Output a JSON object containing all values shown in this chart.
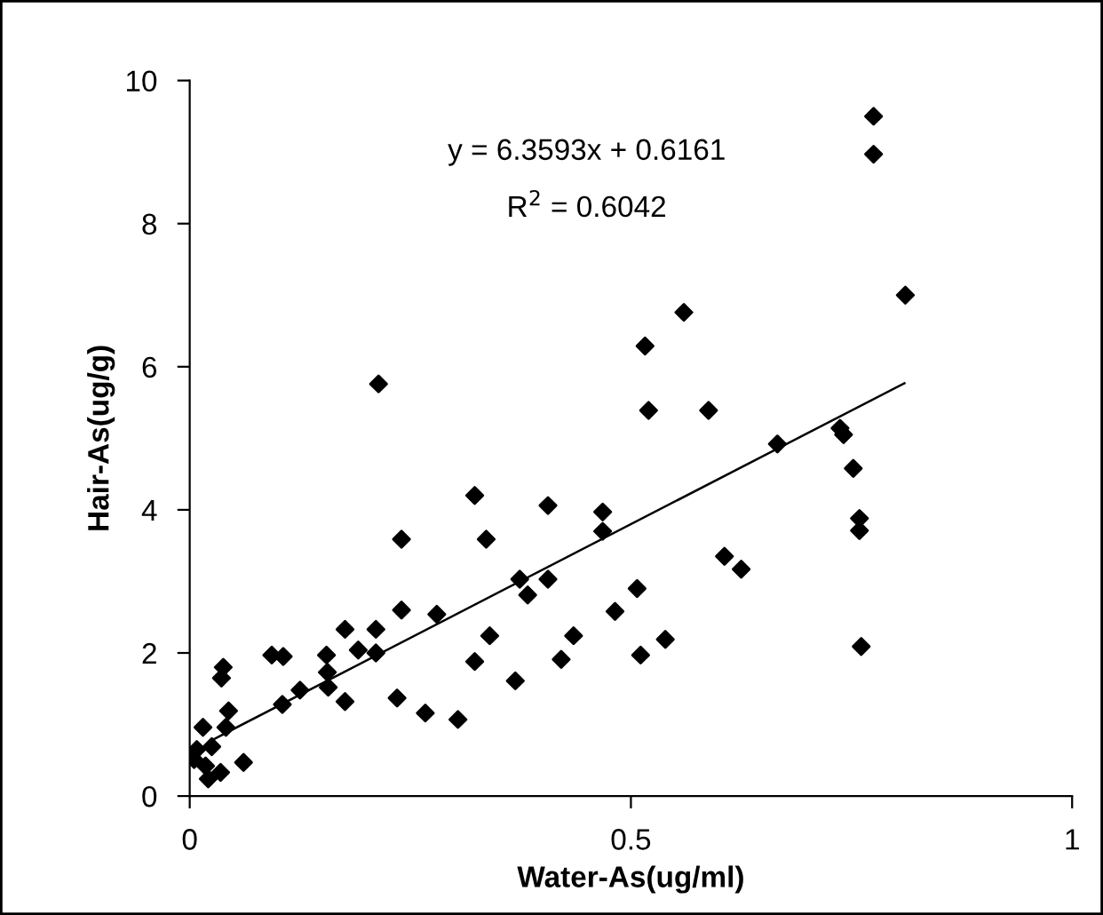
{
  "chart_data": {
    "type": "scatter",
    "xlabel": "Water-As(ug/ml)",
    "ylabel": "Hair-As(ug/g)",
    "annotations": [
      "y = 6.3593x + 0.6161",
      "R$^{2}$ = 0.6042"
    ],
    "xlim": [
      0,
      1
    ],
    "ylim": [
      0,
      10
    ],
    "xticks": [
      0,
      0.5,
      1
    ],
    "yticks": [
      0,
      2,
      4,
      6,
      8,
      10
    ],
    "grid": false,
    "legend": false,
    "series": [
      {
        "marker": "diamond",
        "color": "#000000",
        "x": [
          0.214,
          0.038,
          0.036,
          0.093,
          0.106,
          0.105,
          0.125,
          0.155,
          0.156,
          0.157,
          0.176,
          0.176,
          0.191,
          0.211,
          0.211,
          0.24,
          0.24,
          0.235,
          0.267,
          0.304,
          0.28,
          0.323,
          0.336,
          0.323,
          0.34,
          0.369,
          0.374,
          0.383,
          0.406,
          0.406,
          0.421,
          0.435,
          0.468,
          0.468,
          0.482,
          0.015,
          0.025,
          0.018,
          0.035,
          0.044,
          0.061,
          0.008,
          0.021,
          0.041,
          0.005,
          0.775,
          0.775,
          0.811,
          0.56,
          0.516,
          0.52,
          0.588,
          0.666,
          0.737,
          0.741,
          0.752,
          0.759,
          0.759,
          0.761,
          0.606,
          0.625,
          0.507,
          0.511,
          0.539
        ],
        "values": [
          5.76,
          1.8,
          1.65,
          1.97,
          1.95,
          1.28,
          1.48,
          1.97,
          1.73,
          1.52,
          2.33,
          1.32,
          2.04,
          2.33,
          2.0,
          3.59,
          2.6,
          1.37,
          1.16,
          1.07,
          2.54,
          4.2,
          3.59,
          1.88,
          2.24,
          1.61,
          3.03,
          2.81,
          4.06,
          3.03,
          1.91,
          2.24,
          3.97,
          3.7,
          2.58,
          0.96,
          0.69,
          0.42,
          0.33,
          1.19,
          0.47,
          0.65,
          0.24,
          0.96,
          0.51,
          9.5,
          8.97,
          7.0,
          6.76,
          6.29,
          5.39,
          5.39,
          4.92,
          5.14,
          5.05,
          4.58,
          3.88,
          3.71,
          2.09,
          3.35,
          3.17,
          2.9,
          1.97,
          2.19
        ]
      },
      {
        "type": "line",
        "color": "#000000",
        "x": [
          0.025,
          0.81
        ],
        "values": [
          0.78,
          5.77
        ]
      }
    ]
  }
}
